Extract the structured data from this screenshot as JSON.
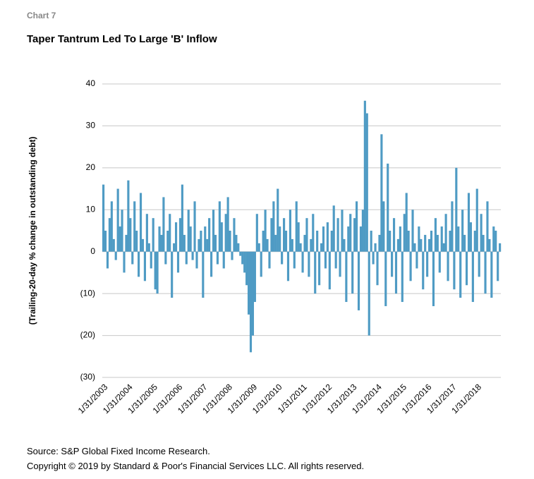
{
  "chart_label": "Chart 7",
  "chart_data": {
    "type": "bar",
    "title": "Taper Tantrum Led To Large 'B' Inflow",
    "y_label": "(Trailing-20-day % change in outstanding debt)",
    "color": "#4f9bc4",
    "grid": true,
    "ylim": [
      -30,
      40
    ],
    "yticks": [
      {
        "value": -30,
        "label": "(30)"
      },
      {
        "value": -20,
        "label": "(20)"
      },
      {
        "value": -10,
        "label": "(10)"
      },
      0,
      10,
      20,
      30,
      40
    ],
    "categories": [
      "1/31/2003",
      null,
      null,
      null,
      null,
      null,
      null,
      null,
      null,
      null,
      null,
      null,
      "1/31/2004",
      null,
      null,
      null,
      null,
      null,
      null,
      null,
      null,
      null,
      null,
      null,
      "1/31/2005",
      null,
      null,
      null,
      null,
      null,
      null,
      null,
      null,
      null,
      null,
      null,
      "1/31/2006",
      null,
      null,
      null,
      null,
      null,
      null,
      null,
      null,
      null,
      null,
      null,
      "1/31/2007",
      null,
      null,
      null,
      null,
      null,
      null,
      null,
      null,
      null,
      null,
      null,
      "1/31/2008",
      null,
      null,
      null,
      null,
      null,
      null,
      null,
      null,
      null,
      null,
      null,
      "1/31/2009",
      null,
      null,
      null,
      null,
      null,
      null,
      null,
      null,
      null,
      null,
      null,
      "1/31/2010",
      null,
      null,
      null,
      null,
      null,
      null,
      null,
      null,
      null,
      null,
      null,
      "1/31/2011",
      null,
      null,
      null,
      null,
      null,
      null,
      null,
      null,
      null,
      null,
      null,
      "1/31/2012",
      null,
      null,
      null,
      null,
      null,
      null,
      null,
      null,
      null,
      null,
      null,
      "1/31/2013",
      null,
      null,
      null,
      null,
      null,
      null,
      null,
      null,
      null,
      null,
      null,
      "1/31/2014",
      null,
      null,
      null,
      null,
      null,
      null,
      null,
      null,
      null,
      null,
      null,
      "1/31/2015",
      null,
      null,
      null,
      null,
      null,
      null,
      null,
      null,
      null,
      null,
      null,
      "1/31/2016",
      null,
      null,
      null,
      null,
      null,
      null,
      null,
      null,
      null,
      null,
      null,
      "1/31/2017",
      null,
      null,
      null,
      null,
      null,
      null,
      null,
      null,
      null,
      null,
      null,
      "1/31/2018",
      null,
      null,
      null,
      null,
      null,
      null,
      null,
      null,
      null,
      null,
      null
    ],
    "values": [
      16,
      5,
      -4,
      8,
      12,
      3,
      -2,
      15,
      6,
      10,
      -5,
      4,
      17,
      8,
      -3,
      12,
      5,
      -6,
      14,
      3,
      -7,
      9,
      2,
      -4,
      8,
      -9,
      -10,
      6,
      4,
      13,
      -3,
      5,
      9,
      -11,
      2,
      7,
      -5,
      8,
      16,
      4,
      -3,
      10,
      6,
      -2,
      12,
      -4,
      3,
      5,
      -11,
      6,
      3,
      8,
      -6,
      10,
      4,
      -3,
      12,
      7,
      -4,
      9,
      13,
      5,
      -2,
      8,
      4,
      2,
      -1,
      -3,
      -5,
      -8,
      -15,
      -24,
      -20,
      -12,
      9,
      2,
      -6,
      5,
      10,
      3,
      -4,
      8,
      12,
      4,
      15,
      6,
      -3,
      8,
      5,
      -7,
      10,
      3,
      -4,
      12,
      7,
      2,
      -5,
      4,
      8,
      -6,
      3,
      9,
      -10,
      5,
      -8,
      2,
      6,
      -4,
      7,
      -9,
      5,
      11,
      -4,
      8,
      -6,
      10,
      3,
      -12,
      6,
      9,
      -10,
      8,
      12,
      -14,
      6,
      10,
      36,
      33,
      -20,
      5,
      -3,
      2,
      -8,
      4,
      28,
      12,
      -13,
      21,
      5,
      -6,
      8,
      -10,
      3,
      6,
      -12,
      9,
      14,
      5,
      -7,
      10,
      2,
      -4,
      6,
      3,
      -9,
      4,
      -6,
      3,
      5,
      -13,
      8,
      4,
      -5,
      6,
      2,
      9,
      -7,
      5,
      12,
      -9,
      20,
      6,
      -11,
      10,
      4,
      -8,
      14,
      7,
      -12,
      5,
      15,
      -6,
      9,
      4,
      -10,
      12,
      3,
      -11,
      6,
      5,
      -7,
      2
    ]
  },
  "source": "Source: S&P Global Fixed Income Research.",
  "copyright": "Copyright © 2019 by Standard & Poor's Financial Services LLC. All rights reserved."
}
